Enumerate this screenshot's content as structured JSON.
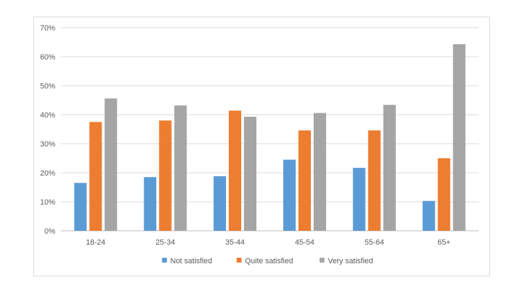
{
  "chart_data": {
    "type": "bar",
    "title": "",
    "xlabel": "",
    "ylabel": "",
    "categories": [
      "18-24",
      "25-34",
      "35-44",
      "45-54",
      "55-64",
      "65+"
    ],
    "series": [
      {
        "name": "Not satisfied",
        "color": "#5b9bd5",
        "values": [
          16.5,
          18.5,
          18.8,
          24.5,
          21.7,
          10.3
        ]
      },
      {
        "name": "Quite satisfied",
        "color": "#ed7d31",
        "values": [
          37.5,
          38.0,
          41.4,
          34.6,
          34.6,
          25.0
        ]
      },
      {
        "name": "Very satisfied",
        "color": "#a5a5a5",
        "values": [
          45.6,
          43.2,
          39.3,
          40.6,
          43.4,
          64.3
        ]
      }
    ],
    "ylim": [
      0,
      70
    ],
    "yticks": [
      "0%",
      "10%",
      "20%",
      "30%",
      "40%",
      "50%",
      "60%",
      "70%"
    ],
    "grid": true,
    "legend_position": "bottom"
  }
}
